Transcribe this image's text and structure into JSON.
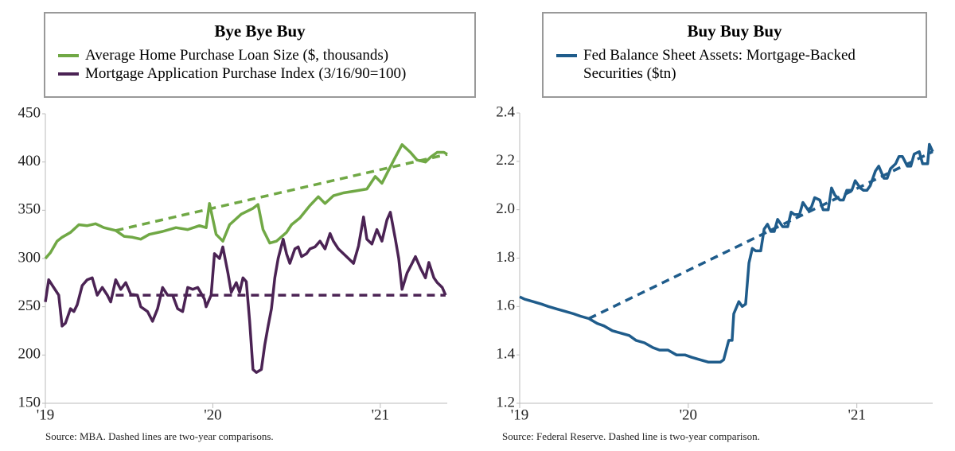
{
  "chart_data": [
    {
      "type": "line",
      "title": "Bye Bye Buy",
      "source": "Source: MBA. Dashed lines are two-year comparisons.",
      "xlim": [
        2019,
        2021.4
      ],
      "ylim": [
        150,
        450
      ],
      "xticks": [
        {
          "value": 2019,
          "label": "'19"
        },
        {
          "value": 2020,
          "label": "'20"
        },
        {
          "value": 2021,
          "label": "'21"
        }
      ],
      "yticks": [
        150,
        200,
        250,
        300,
        350,
        400,
        450
      ],
      "series": [
        {
          "name": "Average Home Purchase Loan Size ($, thousands)",
          "color": "#70a845",
          "x": [
            2019,
            2019.03,
            2019.07,
            2019.1,
            2019.15,
            2019.2,
            2019.25,
            2019.3,
            2019.35,
            2019.42,
            2019.47,
            2019.52,
            2019.57,
            2019.62,
            2019.7,
            2019.78,
            2019.85,
            2019.92,
            2019.96,
            2019.98,
            2020.02,
            2020.06,
            2020.1,
            2020.17,
            2020.24,
            2020.27,
            2020.3,
            2020.34,
            2020.38,
            2020.44,
            2020.47,
            2020.52,
            2020.58,
            2020.63,
            2020.67,
            2020.72,
            2020.78,
            2020.85,
            2020.92,
            2020.97,
            2021.01,
            2021.06,
            2021.09,
            2021.13,
            2021.18,
            2021.22,
            2021.27,
            2021.3,
            2021.34,
            2021.38,
            2021.4
          ],
          "values": [
            300,
            306,
            318,
            322,
            327,
            335,
            334,
            336,
            332,
            329,
            323,
            322,
            320,
            325,
            328,
            332,
            330,
            334,
            332,
            357,
            325,
            318,
            335,
            346,
            352,
            356,
            330,
            316,
            318,
            327,
            335,
            342,
            355,
            364,
            357,
            365,
            368,
            370,
            372,
            385,
            378,
            395,
            405,
            418,
            410,
            402,
            400,
            405,
            410,
            410,
            408
          ]
        },
        {
          "name": "Mortgage Application Purchase Index (3/16/90=100)",
          "color": "#4b2354",
          "x": [
            2019,
            2019.02,
            2019.05,
            2019.08,
            2019.1,
            2019.12,
            2019.15,
            2019.17,
            2019.19,
            2019.22,
            2019.25,
            2019.28,
            2019.31,
            2019.34,
            2019.37,
            2019.39,
            2019.42,
            2019.45,
            2019.48,
            2019.51,
            2019.55,
            2019.57,
            2019.61,
            2019.64,
            2019.67,
            2019.7,
            2019.73,
            2019.76,
            2019.79,
            2019.82,
            2019.85,
            2019.88,
            2019.91,
            2019.95,
            2019.96,
            2019.99,
            2020.01,
            2020.04,
            2020.06,
            2020.09,
            2020.11,
            2020.14,
            2020.16,
            2020.18,
            2020.2,
            2020.22,
            2020.24,
            2020.26,
            2020.29,
            2020.31,
            2020.33,
            2020.35,
            2020.37,
            2020.39,
            2020.42,
            2020.44,
            2020.46,
            2020.49,
            2020.51,
            2020.53,
            2020.56,
            2020.58,
            2020.61,
            2020.64,
            2020.67,
            2020.7,
            2020.72,
            2020.75,
            2020.78,
            2020.81,
            2020.84,
            2020.87,
            2020.9,
            2020.92,
            2020.95,
            2020.98,
            2021.01,
            2021.04,
            2021.06,
            2021.09,
            2021.11,
            2021.13,
            2021.16,
            2021.19,
            2021.21,
            2021.24,
            2021.27,
            2021.29,
            2021.32,
            2021.34,
            2021.37,
            2021.39
          ],
          "values": [
            255,
            278,
            270,
            262,
            230,
            233,
            248,
            245,
            252,
            272,
            278,
            280,
            262,
            270,
            262,
            255,
            278,
            268,
            275,
            263,
            262,
            250,
            245,
            235,
            248,
            270,
            262,
            262,
            248,
            245,
            270,
            268,
            270,
            258,
            250,
            262,
            305,
            300,
            312,
            285,
            265,
            275,
            265,
            280,
            276,
            235,
            185,
            182,
            185,
            210,
            230,
            248,
            280,
            300,
            320,
            305,
            295,
            310,
            312,
            302,
            305,
            310,
            312,
            318,
            310,
            326,
            318,
            310,
            305,
            300,
            295,
            313,
            343,
            320,
            315,
            330,
            318,
            340,
            348,
            320,
            300,
            268,
            285,
            295,
            302,
            290,
            280,
            296,
            280,
            275,
            270,
            262
          ]
        },
        {
          "color": "#70a845",
          "dashed": true,
          "x": [
            2019.42,
            2021.4
          ],
          "values": [
            329,
            408
          ]
        },
        {
          "color": "#4b2354",
          "dashed": true,
          "x": [
            2019.42,
            2021.39
          ],
          "values": [
            262,
            262
          ]
        }
      ]
    },
    {
      "type": "line",
      "title": "Buy Buy Buy",
      "source": "Source:  Federal Reserve. Dashed line is two-year comparison.",
      "xlim": [
        2019,
        2021.45
      ],
      "ylim": [
        1.2,
        2.4
      ],
      "xticks": [
        {
          "value": 2019,
          "label": "'19"
        },
        {
          "value": 2020,
          "label": "'20"
        },
        {
          "value": 2021,
          "label": "'21"
        }
      ],
      "yticks": [
        1.2,
        1.4,
        1.6,
        1.8,
        {
          "value": 2,
          "label": "2.0"
        },
        2.2,
        2.4
      ],
      "series": [
        {
          "name": "Fed Balance Sheet Assets: Mortgage-Backed Securities ($tn)",
          "color": "#1f5c8b",
          "x": [
            2019,
            2019.03,
            2019.08,
            2019.13,
            2019.17,
            2019.22,
            2019.27,
            2019.32,
            2019.36,
            2019.41,
            2019.46,
            2019.5,
            2019.55,
            2019.6,
            2019.65,
            2019.69,
            2019.74,
            2019.79,
            2019.83,
            2019.88,
            2019.93,
            2019.98,
            2020.02,
            2020.07,
            2020.12,
            2020.17,
            2020.19,
            2020.21,
            2020.24,
            2020.26,
            2020.27,
            2020.3,
            2020.32,
            2020.34,
            2020.36,
            2020.38,
            2020.4,
            2020.43,
            2020.45,
            2020.47,
            2020.49,
            2020.51,
            2020.53,
            2020.56,
            2020.59,
            2020.61,
            2020.63,
            2020.66,
            2020.68,
            2020.71,
            2020.73,
            2020.75,
            2020.78,
            2020.8,
            2020.83,
            2020.85,
            2020.87,
            2020.9,
            2020.92,
            2020.94,
            2020.97,
            2020.99,
            2021.02,
            2021.04,
            2021.06,
            2021.08,
            2021.11,
            2021.13,
            2021.16,
            2021.18,
            2021.2,
            2021.23,
            2021.25,
            2021.27,
            2021.3,
            2021.32,
            2021.34,
            2021.37,
            2021.39,
            2021.42,
            2021.43,
            2021.45
          ],
          "values": [
            1.64,
            1.63,
            1.62,
            1.61,
            1.6,
            1.59,
            1.58,
            1.57,
            1.56,
            1.55,
            1.53,
            1.52,
            1.5,
            1.49,
            1.48,
            1.46,
            1.45,
            1.43,
            1.42,
            1.42,
            1.4,
            1.4,
            1.39,
            1.38,
            1.37,
            1.37,
            1.37,
            1.38,
            1.46,
            1.46,
            1.57,
            1.62,
            1.6,
            1.61,
            1.78,
            1.84,
            1.83,
            1.83,
            1.92,
            1.94,
            1.91,
            1.91,
            1.96,
            1.93,
            1.93,
            1.99,
            1.98,
            1.98,
            2.03,
            2.0,
            2.01,
            2.05,
            2.04,
            2.0,
            2.0,
            2.09,
            2.06,
            2.04,
            2.04,
            2.08,
            2.08,
            2.12,
            2.09,
            2.08,
            2.08,
            2.1,
            2.16,
            2.18,
            2.13,
            2.13,
            2.17,
            2.19,
            2.22,
            2.22,
            2.18,
            2.18,
            2.23,
            2.24,
            2.19,
            2.19,
            2.27,
            2.24
          ]
        },
        {
          "color": "#1f5c8b",
          "dashed": true,
          "x": [
            2019.41,
            2021.45
          ],
          "values": [
            1.55,
            2.24
          ]
        }
      ]
    }
  ]
}
